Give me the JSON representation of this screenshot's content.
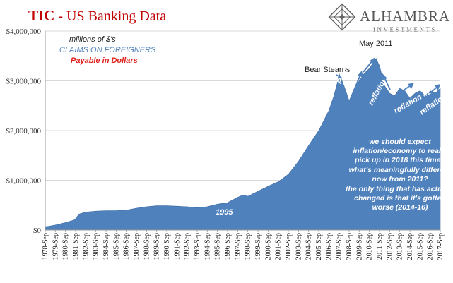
{
  "title": {
    "main": "TIC",
    "rest": " - US Banking Data"
  },
  "logo": {
    "name": "ALHAMBRA",
    "tagline": "INVESTMENTS"
  },
  "colors": {
    "area": "#4f81bd",
    "title": "#c00000",
    "accent_red": "#e0201c",
    "arrow": "#4f81bd",
    "annotation": "#ffffff"
  },
  "chart_data": {
    "type": "area",
    "title": "TIC - US Banking Data",
    "subtitle": [
      "millions of $'s",
      "CLAIMS ON FOREIGNERS",
      "Payable in Dollars"
    ],
    "ylim": [
      0,
      4000000
    ],
    "yticks": [
      0,
      1000000,
      2000000,
      3000000,
      4000000
    ],
    "ytick_labels": [
      "$0",
      "$1,000,000",
      "$2,000,000",
      "$3,000,000",
      "$4,000,000"
    ],
    "xtick_labels": [
      "1978-Sep",
      "1979-Sep",
      "1980-Sep",
      "1981-Sep",
      "1982-Sep",
      "1983-Sep",
      "1984-Sep",
      "1985-Sep",
      "1986-Sep",
      "1987-Sep",
      "1988-Sep",
      "1989-Sep",
      "1990-Sep",
      "1991-Sep",
      "1992-Sep",
      "1993-Sep",
      "1994-Sep",
      "1995-Sep",
      "1996-Sep",
      "1997-Sep",
      "1998-Sep",
      "1999-Sep",
      "2000-Sep",
      "2001-Sep",
      "2002-Sep",
      "2003-Sep",
      "2004-Sep",
      "2005-Sep",
      "2006-Sep",
      "2007-Sep",
      "2008-Sep",
      "2009-Sep",
      "2010-Sep",
      "2011-Sep",
      "2012-Sep",
      "2013-Sep",
      "2014-Sep",
      "2015-Sep",
      "2016-Sep",
      "2017-Sep"
    ],
    "x": [
      1978.67,
      1979.0,
      1979.67,
      1980.67,
      1981.5,
      1981.67,
      1982.0,
      1982.67,
      1983.67,
      1984.67,
      1985.67,
      1986.67,
      1987.67,
      1988.67,
      1989.67,
      1990.67,
      1991.67,
      1992.67,
      1993.67,
      1994.67,
      1995.67,
      1996.67,
      1997.67,
      1998.17,
      1998.67,
      1999.67,
      2000.67,
      2001.67,
      2002.67,
      2003.67,
      2004.67,
      2005.67,
      2006.67,
      2007.17,
      2007.5,
      2007.67,
      2008.17,
      2008.67,
      2009.0,
      2009.67,
      2010.17,
      2010.67,
      2011.0,
      2011.33,
      2011.67,
      2012.17,
      2012.67,
      2013.17,
      2013.67,
      2014.17,
      2014.67,
      2015.17,
      2015.67,
      2016.17,
      2016.67,
      2017.17,
      2017.67
    ],
    "values": [
      70000,
      75000,
      100000,
      150000,
      200000,
      230000,
      320000,
      360000,
      380000,
      390000,
      390000,
      400000,
      440000,
      470000,
      490000,
      490000,
      480000,
      470000,
      450000,
      470000,
      520000,
      550000,
      660000,
      700000,
      680000,
      780000,
      880000,
      970000,
      1120000,
      1380000,
      1700000,
      2000000,
      2400000,
      2700000,
      2950000,
      3150000,
      2900000,
      2600000,
      2750000,
      3000000,
      3150000,
      3250000,
      3350000,
      3450000,
      3300000,
      2900000,
      2750000,
      2700000,
      2850000,
      2800000,
      2650000,
      2750000,
      2800000,
      2700000,
      2800000,
      2750000,
      2850000
    ],
    "annotations": [
      "1995",
      "Bear Stearns",
      "Panic",
      "May 2011",
      "reflation #1",
      "reflation #2",
      "reflation #3"
    ],
    "commentary": [
      "we should expect",
      "inflation/economy to really",
      "pick up in 2018 this time?",
      "what's meaningfully different",
      "now from 2011?",
      "the only thing that has actually",
      "changed is that it's gotten",
      "worse (2014-16)"
    ]
  }
}
